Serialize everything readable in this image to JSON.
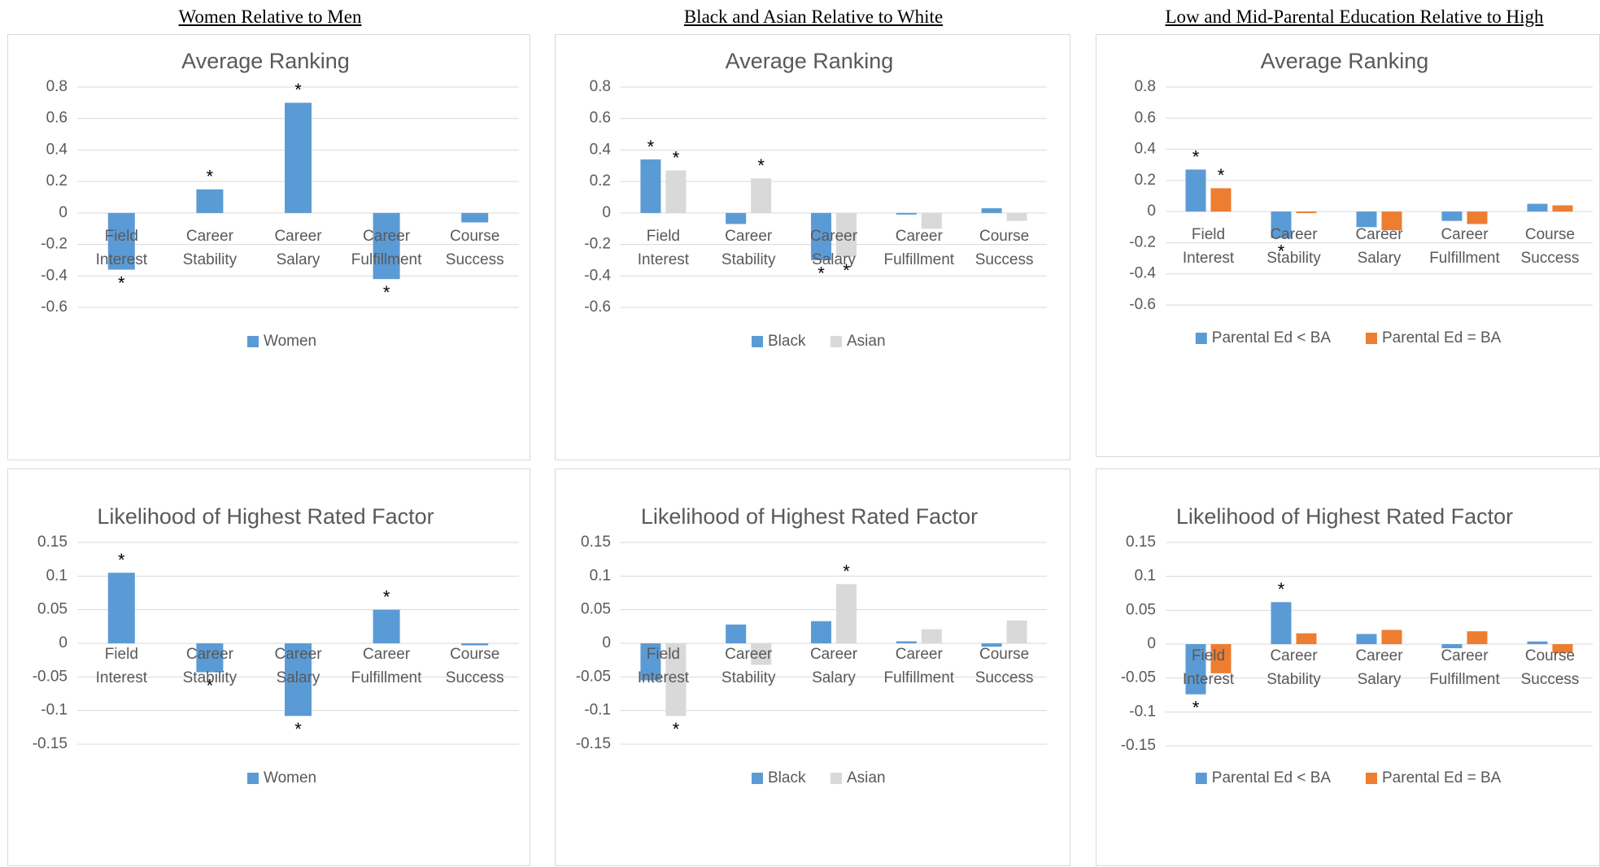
{
  "colors": {
    "blue": "#5b9bd5",
    "gray": "#d9d9d9",
    "orange": "#ed7d31",
    "grid": "#d9d9d9",
    "text": "#595959"
  },
  "column_headers": [
    "Women Relative to Men",
    "Black and Asian Relative to White",
    "Low and Mid-Parental Education Relative to High"
  ],
  "chart_data": [
    {
      "type": "bar",
      "title": "Average Ranking",
      "categories": [
        "Field Interest",
        "Career Stability",
        "Career Salary",
        "Career Fulfillment",
        "Course Success"
      ],
      "ylim": [
        -0.6,
        0.8
      ],
      "yticks": [
        0.8,
        0.6,
        0.4,
        0.2,
        0,
        -0.2,
        -0.4,
        -0.6
      ],
      "ytick_labels": [
        "0.8",
        "0.6",
        "0.4",
        "0.2",
        "0",
        "-0.2",
        "-0.4",
        "-0.6"
      ],
      "grid": true,
      "legend": "bottom",
      "series": [
        {
          "name": "Women",
          "color": "blue",
          "values": [
            -0.36,
            0.15,
            0.7,
            -0.42,
            -0.06
          ],
          "stars": [
            true,
            true,
            true,
            true,
            false
          ]
        }
      ]
    },
    {
      "type": "bar",
      "title": "Average Ranking",
      "categories": [
        "Field Interest",
        "Career Stability",
        "Career Salary",
        "Career Fulfillment",
        "Course Success"
      ],
      "ylim": [
        -0.6,
        0.8
      ],
      "yticks": [
        0.8,
        0.6,
        0.4,
        0.2,
        0,
        -0.2,
        -0.4,
        -0.6
      ],
      "ytick_labels": [
        "0.8",
        "0.6",
        "0.4",
        "0.2",
        "0",
        "-0.2",
        "-0.4",
        "-0.6"
      ],
      "grid": true,
      "legend": "bottom",
      "series": [
        {
          "name": "Black",
          "color": "blue",
          "values": [
            0.34,
            -0.07,
            -0.3,
            -0.01,
            0.03
          ],
          "stars": [
            true,
            false,
            true,
            false,
            false
          ]
        },
        {
          "name": "Asian",
          "color": "gray",
          "values": [
            0.27,
            0.22,
            -0.28,
            -0.1,
            -0.05
          ],
          "stars": [
            true,
            true,
            true,
            false,
            false
          ]
        }
      ]
    },
    {
      "type": "bar",
      "title": "Average Ranking",
      "categories": [
        "Field Interest",
        "Career Stability",
        "Career Salary",
        "Career Fulfillment",
        "Course Success"
      ],
      "ylim": [
        -0.6,
        0.8
      ],
      "yticks": [
        0.8,
        0.6,
        0.4,
        0.2,
        0,
        -0.2,
        -0.4,
        -0.6
      ],
      "ytick_labels": [
        "0.8",
        "0.6",
        "0.4",
        "0.2",
        "0",
        "-0.2",
        "-0.4",
        "-0.6"
      ],
      "grid": true,
      "legend": "bottom",
      "series": [
        {
          "name": "Parental Ed < BA",
          "color": "blue",
          "values": [
            0.27,
            -0.17,
            -0.1,
            -0.06,
            0.05
          ],
          "stars": [
            true,
            true,
            false,
            false,
            false
          ]
        },
        {
          "name": "Parental Ed = BA",
          "color": "orange",
          "values": [
            0.15,
            -0.01,
            -0.12,
            -0.08,
            0.04
          ],
          "stars": [
            true,
            false,
            false,
            false,
            false
          ]
        }
      ]
    },
    {
      "type": "bar",
      "title": "Likelihood of Highest Rated Factor",
      "categories": [
        "Field Interest",
        "Career Stability",
        "Career Salary",
        "Career Fulfillment",
        "Course Success"
      ],
      "ylim": [
        -0.15,
        0.15
      ],
      "yticks": [
        0.15,
        0.1,
        0.05,
        0,
        -0.05,
        -0.1,
        -0.15
      ],
      "ytick_labels": [
        "0.15",
        "0.1",
        "0.05",
        "0",
        "-0.05",
        "-0.1",
        "-0.15"
      ],
      "grid": true,
      "legend": "bottom",
      "series": [
        {
          "name": "Women",
          "color": "blue",
          "values": [
            0.105,
            -0.043,
            -0.108,
            0.05,
            -0.003
          ],
          "stars": [
            true,
            true,
            true,
            true,
            false
          ]
        }
      ]
    },
    {
      "type": "bar",
      "title": "Likelihood of Highest Rated Factor",
      "categories": [
        "Field Interest",
        "Career Stability",
        "Career Salary",
        "Career Fulfillment",
        "Course Success"
      ],
      "ylim": [
        -0.15,
        0.15
      ],
      "yticks": [
        0.15,
        0.1,
        0.05,
        0,
        -0.05,
        -0.1,
        -0.15
      ],
      "ytick_labels": [
        "0.15",
        "0.1",
        "0.05",
        "0",
        "-0.05",
        "-0.1",
        "-0.15"
      ],
      "grid": true,
      "legend": "bottom",
      "series": [
        {
          "name": "Black",
          "color": "blue",
          "values": [
            -0.055,
            0.028,
            0.033,
            0.003,
            -0.005
          ],
          "stars": [
            false,
            false,
            false,
            false,
            false
          ]
        },
        {
          "name": "Asian",
          "color": "gray",
          "values": [
            -0.108,
            -0.032,
            0.088,
            0.021,
            0.034
          ],
          "stars": [
            true,
            false,
            true,
            false,
            false
          ]
        }
      ]
    },
    {
      "type": "bar",
      "title": "Likelihood of Highest Rated Factor",
      "categories": [
        "Field Interest",
        "Career Stability",
        "Career Salary",
        "Career Fulfillment",
        "Course Success"
      ],
      "ylim": [
        -0.15,
        0.15
      ],
      "yticks": [
        0.15,
        0.1,
        0.05,
        0,
        -0.05,
        -0.1,
        -0.15
      ],
      "ytick_labels": [
        "0.15",
        "0.1",
        "0.05",
        "0",
        "-0.05",
        "-0.1",
        "-0.15"
      ],
      "grid": true,
      "legend": "bottom",
      "series": [
        {
          "name": "Parental Ed < BA",
          "color": "blue",
          "values": [
            -0.074,
            0.062,
            0.015,
            -0.006,
            0.004
          ],
          "stars": [
            true,
            true,
            false,
            false,
            false
          ]
        },
        {
          "name": "Parental Ed = BA",
          "color": "orange",
          "values": [
            -0.043,
            0.016,
            0.021,
            0.019,
            -0.013
          ],
          "stars": [
            false,
            false,
            false,
            false,
            false
          ]
        }
      ]
    }
  ]
}
